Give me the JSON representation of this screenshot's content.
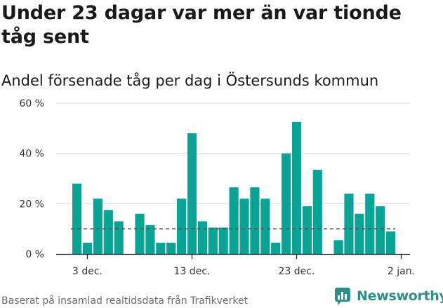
{
  "title": "Under 23 dagar var mer än var tionde tåg sent",
  "subtitle": "Andel försenade tåg per dag i Östersunds kommun",
  "footer": "Baserat på insamlad realtidsdata från Trafikverket",
  "brand": "Newsworthy",
  "colors": {
    "bar": "#0aa396",
    "brand": "#2f8f8a",
    "reference_line": "#555555",
    "grid": "#dddddd"
  },
  "chart_data": {
    "type": "bar",
    "x_start": "2023-12-02",
    "x_ticks": [
      {
        "label": "3 dec.",
        "date": "2023-12-03"
      },
      {
        "label": "13 dec.",
        "date": "2023-12-13"
      },
      {
        "label": "23 dec.",
        "date": "2023-12-23"
      },
      {
        "label": "2 jan.",
        "date": "2024-01-02"
      }
    ],
    "values": [
      28,
      4.5,
      22,
      17.5,
      13,
      null,
      16,
      11.5,
      4.5,
      4.5,
      22,
      48,
      13,
      10.5,
      10.5,
      26.5,
      22,
      26.5,
      22,
      4.5,
      40,
      52.5,
      19,
      33.5,
      null,
      5.5,
      24,
      16,
      24,
      19,
      9
    ],
    "y_ticks": [
      0,
      20,
      40,
      60
    ],
    "y_tick_labels": [
      "0 %",
      "20 %",
      "40 %",
      "60 %"
    ],
    "ylim": [
      0,
      60
    ],
    "reference_value": 10,
    "grid": true
  }
}
